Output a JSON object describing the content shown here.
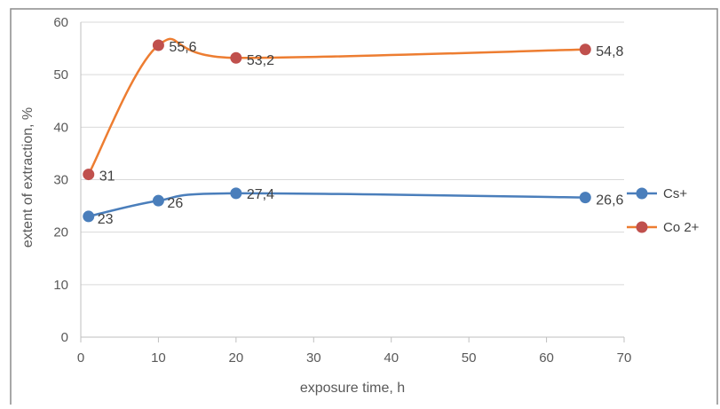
{
  "chart_data": {
    "type": "line",
    "title": "",
    "xlabel": "exposure time, h",
    "ylabel": "extent of extraction, %",
    "xlim": [
      0,
      70
    ],
    "ylim": [
      0,
      60
    ],
    "x_ticks": [
      0,
      10,
      20,
      30,
      40,
      50,
      60,
      70
    ],
    "y_ticks": [
      0,
      10,
      20,
      30,
      40,
      50,
      60
    ],
    "grid": "horizontal",
    "legend_position": "right",
    "smoothed": true,
    "series": [
      {
        "name": "Cs+",
        "color": "#4a7ebb",
        "points": [
          {
            "x": 1,
            "y": 23,
            "label": "23"
          },
          {
            "x": 10,
            "y": 26,
            "label": "26"
          },
          {
            "x": 20,
            "y": 27.4,
            "label": "27,4"
          },
          {
            "x": 65,
            "y": 26.6,
            "label": "26,6"
          }
        ]
      },
      {
        "name": "Co 2+",
        "color": "#ed7d31",
        "marker_color": "#c0504d",
        "points": [
          {
            "x": 1,
            "y": 31,
            "label": "31"
          },
          {
            "x": 10,
            "y": 55.6,
            "label": "55,6"
          },
          {
            "x": 20,
            "y": 53.2,
            "label": "53,2"
          },
          {
            "x": 65,
            "y": 54.8,
            "label": "54,8"
          }
        ]
      }
    ]
  }
}
